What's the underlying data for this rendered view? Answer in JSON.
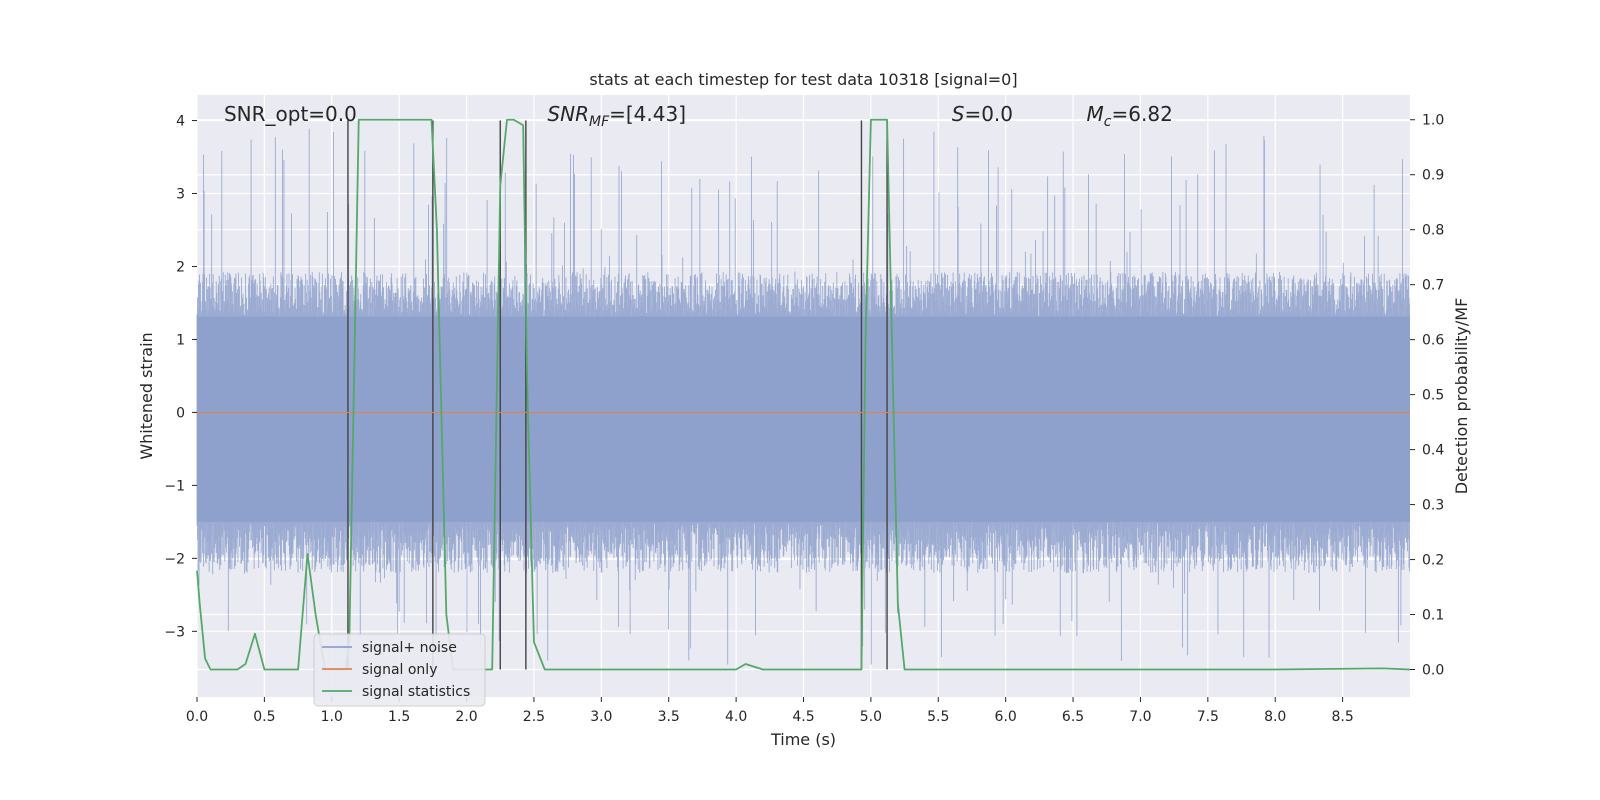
{
  "chart_data": {
    "type": "line",
    "title": "stats at each timestep for test data 10318 [signal=0]",
    "xlabel": "Time (s)",
    "ylabel": "Whitened strain",
    "y2label": "Detection probability/MF",
    "xlim": [
      0.0,
      9.0
    ],
    "ylim": [
      -3.9,
      4.35
    ],
    "y2lim": [
      -0.05,
      1.045
    ],
    "xticks": [
      0.0,
      0.5,
      1.0,
      1.5,
      2.0,
      2.5,
      3.0,
      3.5,
      4.0,
      4.5,
      5.0,
      5.5,
      6.0,
      6.5,
      7.0,
      7.5,
      8.0,
      8.5
    ],
    "xtick_labels": [
      "0.0",
      "0.5",
      "1.0",
      "1.5",
      "2.0",
      "2.5",
      "3.0",
      "3.5",
      "4.0",
      "4.5",
      "5.0",
      "5.5",
      "6.0",
      "6.5",
      "7.0",
      "7.5",
      "8.0",
      "8.5"
    ],
    "yticks": [
      -3,
      -2,
      -1,
      0,
      1,
      2,
      3,
      4
    ],
    "ytick_labels": [
      "−3",
      "−2",
      "−1",
      "0",
      "1",
      "2",
      "3",
      "4"
    ],
    "y2ticks": [
      0.0,
      0.1,
      0.2,
      0.3,
      0.4,
      0.5,
      0.6,
      0.7,
      0.8,
      0.9,
      1.0
    ],
    "y2tick_labels": [
      "0.0",
      "0.1",
      "0.2",
      "0.3",
      "0.4",
      "0.5",
      "0.6",
      "0.7",
      "0.8",
      "0.9",
      "1.0"
    ],
    "series": [
      {
        "name": "signal+ noise",
        "color": "#8da0cb",
        "axis": "left",
        "style": "dense noise band",
        "typical_range": [
          -2.0,
          1.75
        ],
        "peak_range": [
          -3.5,
          4.0
        ]
      },
      {
        "name": "signal only",
        "color": "#dd8452",
        "axis": "left",
        "x": [
          0.0,
          9.0
        ],
        "y": [
          0.0,
          0.0
        ]
      },
      {
        "name": "signal statistics",
        "color": "#55a868",
        "axis": "right",
        "x": [
          0.0,
          0.02,
          0.06,
          0.1,
          0.2,
          0.3,
          0.36,
          0.43,
          0.5,
          0.6,
          0.75,
          0.82,
          0.88,
          0.95,
          1.05,
          1.1,
          1.13,
          1.2,
          1.3,
          1.5,
          1.74,
          1.78,
          1.85,
          1.9,
          2.0,
          2.1,
          2.19,
          2.25,
          2.3,
          2.35,
          2.42,
          2.45,
          2.5,
          2.58,
          3.0,
          3.5,
          4.0,
          4.07,
          4.2,
          4.5,
          4.93,
          4.96,
          5.0,
          5.12,
          5.2,
          5.25,
          6.0,
          7.0,
          8.0,
          8.8,
          9.0
        ],
        "y": [
          0.18,
          0.12,
          0.02,
          0.0,
          0.0,
          0.0,
          0.01,
          0.065,
          0.0,
          0.0,
          0.0,
          0.21,
          0.1,
          0.0,
          0.0,
          0.0,
          0.05,
          1.0,
          1.0,
          1.0,
          1.0,
          0.8,
          0.1,
          0.0,
          0.0,
          0.0,
          0.0,
          0.88,
          1.0,
          1.0,
          0.99,
          0.52,
          0.05,
          0.0,
          0.0,
          0.0,
          0.0,
          0.01,
          0.0,
          0.0,
          0.0,
          0.6,
          1.0,
          1.0,
          0.12,
          0.0,
          0.0,
          0.0,
          0.0,
          0.002,
          0.0
        ]
      }
    ],
    "vlines_x": [
      1.12,
      1.75,
      2.25,
      2.44,
      4.93,
      5.12
    ],
    "vline_color": "#444444",
    "annotations": [
      {
        "text": "SNR_opt=0.0",
        "x": 0.2
      },
      {
        "text": "SNR",
        "sub": "MF",
        "suffix": "=[4.43]",
        "italic": true,
        "x": 2.6
      },
      {
        "text": "S",
        "suffix": "=0.0",
        "italic": true,
        "x": 5.6
      },
      {
        "text": "M",
        "sub": "c",
        "suffix": "=6.82",
        "italic": true,
        "x": 6.6
      }
    ],
    "legend": {
      "position": "lower-left",
      "entries": [
        "signal+ noise",
        "signal only",
        "signal statistics"
      ]
    },
    "background_color": "#eaeaf2",
    "grid": true
  }
}
